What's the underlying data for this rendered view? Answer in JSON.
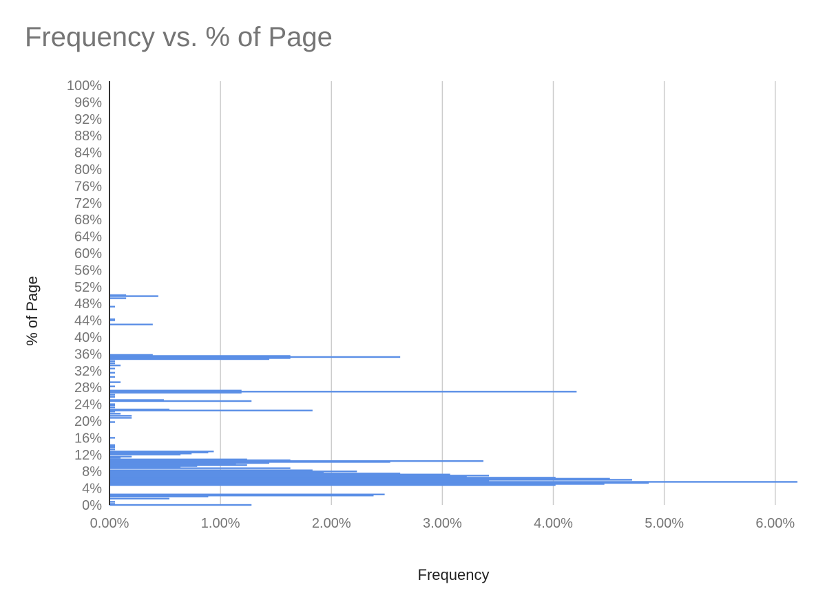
{
  "chart_data": {
    "type": "bar",
    "orientation": "horizontal",
    "title": "Frequency vs. % of Page",
    "xlabel": "Frequency",
    "ylabel": "% of Page",
    "xlim": [
      0,
      0.062
    ],
    "ylim": [
      0,
      1
    ],
    "x_ticks": [
      "0.00%",
      "1.00%",
      "2.00%",
      "3.00%",
      "4.00%",
      "5.00%",
      "6.00%"
    ],
    "y_ticks": [
      "0%",
      "4%",
      "8%",
      "12%",
      "16%",
      "20%",
      "24%",
      "28%",
      "32%",
      "36%",
      "40%",
      "44%",
      "48%",
      "52%",
      "56%",
      "60%",
      "64%",
      "68%",
      "72%",
      "76%",
      "80%",
      "84%",
      "88%",
      "92%",
      "96%",
      "100%"
    ],
    "grid": "vertical",
    "colors": {
      "bar": "#5b8fe6",
      "axis": "#333333",
      "grid": "#cccccc"
    },
    "series": [
      {
        "points": [
          {
            "y": 0.0,
            "x": 0.0128
          },
          {
            "y": 0.0025,
            "x": 0.0005
          },
          {
            "y": 0.0075,
            "x": 0.0005
          },
          {
            "y": 0.015,
            "x": 0.0054
          },
          {
            "y": 0.02,
            "x": 0.0089
          },
          {
            "y": 0.0225,
            "x": 0.0238
          },
          {
            "y": 0.025,
            "x": 0.0248
          },
          {
            "y": 0.0475,
            "x": 0.0402
          },
          {
            "y": 0.05,
            "x": 0.0446
          },
          {
            "y": 0.0525,
            "x": 0.0486
          },
          {
            "y": 0.055,
            "x": 0.062
          },
          {
            "y": 0.0575,
            "x": 0.0342
          },
          {
            "y": 0.06,
            "x": 0.0471
          },
          {
            "y": 0.0625,
            "x": 0.0451
          },
          {
            "y": 0.065,
            "x": 0.0402
          },
          {
            "y": 0.0675,
            "x": 0.0322
          },
          {
            "y": 0.07,
            "x": 0.0342
          },
          {
            "y": 0.0725,
            "x": 0.0307
          },
          {
            "y": 0.075,
            "x": 0.0262
          },
          {
            "y": 0.0775,
            "x": 0.0193
          },
          {
            "y": 0.08,
            "x": 0.0223
          },
          {
            "y": 0.0825,
            "x": 0.0183
          },
          {
            "y": 0.0875,
            "x": 0.0163
          },
          {
            "y": 0.09,
            "x": 0.0064
          },
          {
            "y": 0.0925,
            "x": 0.0079
          },
          {
            "y": 0.095,
            "x": 0.0124
          },
          {
            "y": 0.0975,
            "x": 0.0114
          },
          {
            "y": 0.1,
            "x": 0.0144
          },
          {
            "y": 0.1025,
            "x": 0.0253
          },
          {
            "y": 0.1045,
            "x": 0.0337
          },
          {
            "y": 0.1065,
            "x": 0.0163
          },
          {
            "y": 0.1085,
            "x": 0.0124
          },
          {
            "y": 0.1125,
            "x": 0.001
          },
          {
            "y": 0.115,
            "x": 0.002
          },
          {
            "y": 0.12,
            "x": 0.0064
          },
          {
            "y": 0.1225,
            "x": 0.0074
          },
          {
            "y": 0.125,
            "x": 0.0089
          },
          {
            "y": 0.1275,
            "x": 0.0094
          },
          {
            "y": 0.1325,
            "x": 0.0005
          },
          {
            "y": 0.1375,
            "x": 0.0005
          },
          {
            "y": 0.14,
            "x": 0.0005
          },
          {
            "y": 0.1425,
            "x": 0.0005
          },
          {
            "y": 0.16,
            "x": 0.0005
          },
          {
            "y": 0.1975,
            "x": 0.0005
          },
          {
            "y": 0.2075,
            "x": 0.002
          },
          {
            "y": 0.2125,
            "x": 0.002
          },
          {
            "y": 0.2175,
            "x": 0.001
          },
          {
            "y": 0.2225,
            "x": 0.0005
          },
          {
            "y": 0.225,
            "x": 0.0183
          },
          {
            "y": 0.2275,
            "x": 0.0054
          },
          {
            "y": 0.2325,
            "x": 0.0005
          },
          {
            "y": 0.2375,
            "x": 0.0005
          },
          {
            "y": 0.24,
            "x": 0.0005
          },
          {
            "y": 0.2475,
            "x": 0.0128
          },
          {
            "y": 0.25,
            "x": 0.0049
          },
          {
            "y": 0.2575,
            "x": 0.0005
          },
          {
            "y": 0.2625,
            "x": 0.0005
          },
          {
            "y": 0.2675,
            "x": 0.0119
          },
          {
            "y": 0.27,
            "x": 0.0421
          },
          {
            "y": 0.2725,
            "x": 0.0119
          },
          {
            "y": 0.2825,
            "x": 0.0005
          },
          {
            "y": 0.2925,
            "x": 0.001
          },
          {
            "y": 0.305,
            "x": 0.0005
          },
          {
            "y": 0.315,
            "x": 0.0005
          },
          {
            "y": 0.325,
            "x": 0.0005
          },
          {
            "y": 0.3325,
            "x": 0.001
          },
          {
            "y": 0.3375,
            "x": 0.0005
          },
          {
            "y": 0.3425,
            "x": 0.0005
          },
          {
            "y": 0.3475,
            "x": 0.0144
          },
          {
            "y": 0.35,
            "x": 0.0163
          },
          {
            "y": 0.3525,
            "x": 0.0262
          },
          {
            "y": 0.355,
            "x": 0.0163
          },
          {
            "y": 0.3575,
            "x": 0.0039
          },
          {
            "y": 0.43,
            "x": 0.0039
          },
          {
            "y": 0.44,
            "x": 0.0005
          },
          {
            "y": 0.4425,
            "x": 0.0005
          },
          {
            "y": 0.4725,
            "x": 0.0005
          },
          {
            "y": 0.4925,
            "x": 0.0015
          },
          {
            "y": 0.4975,
            "x": 0.0044
          },
          {
            "y": 0.5,
            "x": 0.0015
          }
        ]
      }
    ]
  }
}
